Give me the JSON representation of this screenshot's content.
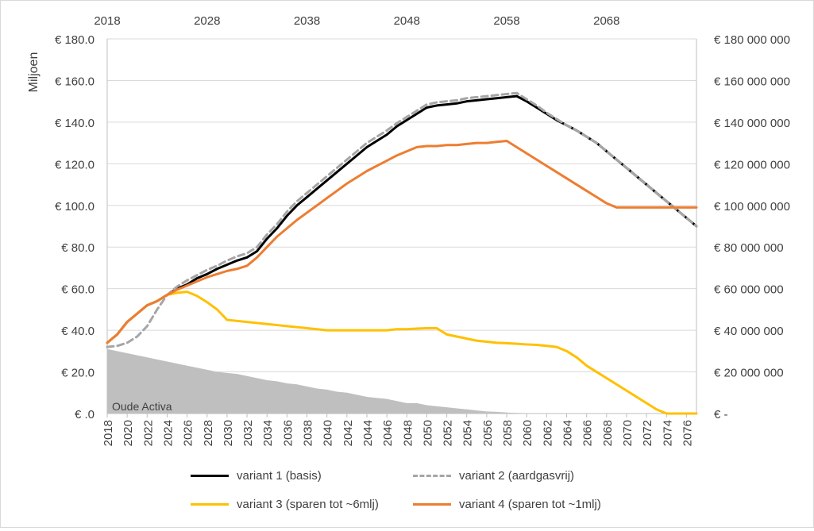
{
  "chart_data": {
    "type": "area+line",
    "ylabel": "Miljoen",
    "x_years": [
      2018,
      2019,
      2020,
      2021,
      2022,
      2023,
      2024,
      2025,
      2026,
      2027,
      2028,
      2029,
      2030,
      2031,
      2032,
      2033,
      2034,
      2035,
      2036,
      2037,
      2038,
      2039,
      2040,
      2041,
      2042,
      2043,
      2044,
      2045,
      2046,
      2047,
      2048,
      2049,
      2050,
      2051,
      2052,
      2053,
      2054,
      2055,
      2056,
      2057,
      2058,
      2059,
      2060,
      2061,
      2062,
      2063,
      2064,
      2065,
      2066,
      2067,
      2068,
      2069,
      2070,
      2071,
      2072,
      2073,
      2074,
      2075,
      2076,
      2077
    ],
    "bottom_ticks": [
      "2018",
      "2020",
      "2022",
      "2024",
      "2026",
      "2028",
      "2030",
      "2032",
      "2034",
      "2036",
      "2038",
      "2040",
      "2042",
      "2044",
      "2046",
      "2048",
      "2050",
      "2052",
      "2054",
      "2056",
      "2058",
      "2060",
      "2062",
      "2064",
      "2066",
      "2068",
      "2070",
      "2072",
      "2074",
      "2076"
    ],
    "top_ticks": [
      "2018",
      "2028",
      "2038",
      "2048",
      "2058",
      "2068"
    ],
    "left_ticks": [
      "€ .0",
      "€ 20.0",
      "€ 40.0",
      "€ 60.0",
      "€ 80.0",
      "€ 100.0",
      "€ 120.0",
      "€ 140.0",
      "€ 160.0",
      "€ 180.0"
    ],
    "right_ticks": [
      "€ -",
      "€ 20 000 000",
      "€ 40 000 000",
      "€ 60 000 000",
      "€ 80 000 000",
      "€ 100 000 000",
      "€ 120 000 000",
      "€ 140 000 000",
      "€ 160 000 000",
      "€ 180 000 000"
    ],
    "ylim": [
      0,
      180
    ],
    "area": {
      "label": "Oude Activa",
      "color": "#bfbfbf",
      "values": [
        31,
        30,
        29,
        28,
        27,
        26,
        25,
        24,
        23,
        22,
        21,
        20,
        19.5,
        19,
        18,
        17,
        16,
        15.5,
        14.5,
        14,
        13,
        12,
        11.5,
        10.5,
        10,
        9,
        8,
        7.5,
        7,
        6,
        5,
        5,
        4,
        3.5,
        3,
        2.5,
        2,
        1.5,
        1,
        0.8,
        0.5,
        0.3,
        0.2,
        0.1,
        0,
        0,
        0,
        0,
        0,
        0,
        0,
        0,
        0,
        0,
        0,
        0,
        0,
        0,
        0,
        0
      ]
    },
    "series": [
      {
        "name": "variant 1 (basis)",
        "color": "#000000",
        "dash": "solid",
        "values": [
          34,
          38,
          44,
          48,
          52,
          54,
          57,
          60,
          62,
          65,
          67,
          69.5,
          71.5,
          73.5,
          75,
          78,
          84,
          89,
          95,
          100,
          104,
          108,
          112,
          116,
          120,
          124,
          128,
          131,
          134,
          138,
          141,
          144,
          147,
          148,
          148.5,
          149,
          150,
          150.5,
          151,
          151.5,
          152,
          152.5,
          150,
          147,
          144,
          141,
          138.5,
          136,
          133,
          130,
          126,
          122,
          118,
          114,
          110,
          106,
          102,
          98,
          94,
          90
        ]
      },
      {
        "name": "variant 2 (aardgasvrij)",
        "color": "#a6a6a6",
        "dash": "dashed",
        "values": [
          32,
          32.5,
          34,
          37,
          42,
          50,
          57,
          61,
          64,
          66.5,
          69,
          71,
          73.5,
          75.5,
          77,
          80,
          86,
          91,
          97,
          102,
          106,
          110,
          114,
          118,
          122,
          126,
          130,
          133,
          136,
          139.5,
          142.5,
          145.5,
          148.5,
          149.5,
          150,
          150.5,
          151.5,
          152,
          152.5,
          153,
          153.5,
          154,
          151,
          148,
          144.5,
          141.5,
          138.5,
          136,
          133,
          130,
          126,
          122,
          118,
          114,
          110,
          106,
          102,
          98,
          94,
          90
        ]
      },
      {
        "name": "variant 3  (sparen tot ~6mlj)",
        "color": "#ffc000",
        "dash": "solid",
        "values": [
          34,
          38,
          44,
          48,
          52,
          54,
          57,
          58,
          58.5,
          56.5,
          53.5,
          50,
          45,
          44.5,
          44,
          43.5,
          43,
          42.5,
          42,
          41.5,
          41,
          40.5,
          40,
          40,
          40,
          40,
          40,
          40,
          40,
          40.5,
          40.5,
          40.8,
          41,
          41,
          38,
          37,
          36,
          35,
          34.5,
          34,
          33.8,
          33.5,
          33.2,
          33,
          32.5,
          32,
          30,
          27,
          23,
          20,
          17,
          14,
          11,
          8,
          5,
          2,
          0,
          0,
          0,
          0
        ]
      },
      {
        "name": "variant 4 (sparen tot ~1mlj)",
        "color": "#ed7d31",
        "dash": "solid",
        "values": [
          34,
          38,
          44,
          48,
          52,
          54,
          57,
          59.5,
          61.5,
          63.5,
          65.5,
          67,
          68.5,
          69.5,
          71,
          75,
          80,
          85,
          89,
          93,
          96.5,
          100,
          103.5,
          107,
          110.5,
          113.5,
          116.5,
          119,
          121.5,
          124,
          126,
          128,
          128.5,
          128.5,
          129,
          129,
          129.5,
          130,
          130,
          130.5,
          131,
          128,
          125,
          122,
          119,
          116,
          113,
          110,
          107,
          104,
          101,
          99,
          99,
          99,
          99,
          99,
          99,
          99,
          99,
          99
        ]
      }
    ],
    "grid": true,
    "legend_position": "bottom"
  }
}
